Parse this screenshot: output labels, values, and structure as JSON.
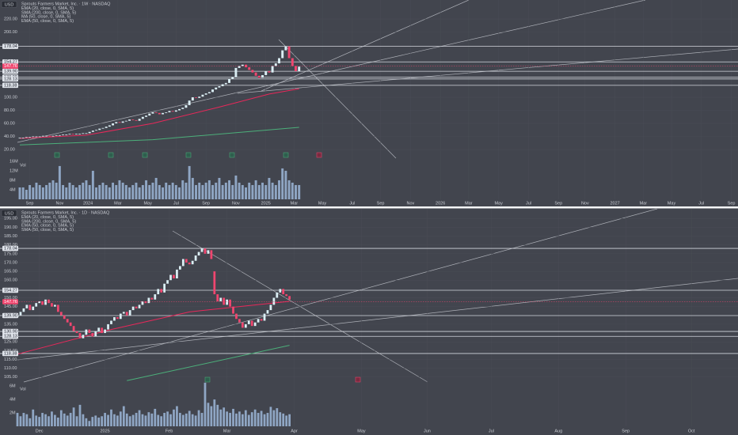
{
  "chart_data": [
    {
      "type": "candlestick",
      "currency": "USD",
      "title": "Sprouts Farmers Market, Inc. · 1W · NASDAQ",
      "indicators": [
        "EMA (20, close, 0, SMA, 5)",
        "SMA (200, close, 0, SMA, 5)",
        "MA (50, close, 0, SMA, 5)",
        "EMA (50, close, 0, SMA, 5)"
      ],
      "open": [
        37,
        38,
        38,
        39,
        39,
        40,
        40,
        40,
        41,
        41,
        40,
        41,
        42,
        42,
        43,
        43,
        44,
        43,
        44,
        44,
        45,
        45,
        47,
        49,
        50,
        52,
        53,
        55,
        57,
        60,
        62,
        61,
        63,
        64,
        66,
        65,
        64,
        67,
        70,
        72,
        75,
        77,
        76,
        74,
        76,
        77,
        79,
        78,
        80,
        82,
        84,
        88,
        95,
        100,
        99,
        101,
        104,
        106,
        108,
        112,
        115,
        117,
        120,
        122,
        128,
        131,
        145,
        148,
        150,
        146,
        142,
        138,
        133,
        130,
        134,
        140,
        138,
        148,
        152,
        160,
        172,
        178,
        160,
        148,
        140
      ],
      "close": [
        38,
        38,
        39,
        39,
        40,
        40,
        40,
        41,
        41,
        40,
        41,
        42,
        42,
        43,
        43,
        44,
        43,
        44,
        44,
        45,
        45,
        47,
        49,
        50,
        52,
        53,
        55,
        57,
        60,
        62,
        61,
        63,
        64,
        66,
        65,
        64,
        67,
        70,
        72,
        75,
        77,
        76,
        74,
        76,
        77,
        79,
        78,
        80,
        82,
        84,
        88,
        95,
        100,
        99,
        101,
        104,
        106,
        108,
        112,
        115,
        117,
        120,
        122,
        128,
        131,
        145,
        148,
        150,
        146,
        142,
        138,
        133,
        130,
        134,
        140,
        138,
        148,
        152,
        160,
        172,
        178,
        160,
        148,
        140,
        147
      ],
      "volume": [
        5,
        5,
        4,
        6,
        5,
        7,
        6,
        5,
        6,
        7,
        8,
        7,
        14,
        6,
        5,
        7,
        6,
        5,
        6,
        7,
        8,
        6,
        12,
        5,
        6,
        7,
        6,
        5,
        7,
        6,
        8,
        7,
        6,
        5,
        6,
        7,
        5,
        6,
        8,
        6,
        7,
        9,
        6,
        5,
        7,
        6,
        7,
        6,
        5,
        8,
        7,
        14,
        9,
        6,
        7,
        6,
        7,
        8,
        6,
        7,
        9,
        6,
        7,
        8,
        6,
        10,
        7,
        6,
        5,
        7,
        6,
        8,
        6,
        7,
        6,
        9,
        7,
        6,
        8,
        13,
        12,
        8,
        7,
        6,
        6
      ],
      "volume_label": "Vol",
      "up_color": "#dbeef4",
      "down_color": "#f0466f",
      "volume_color": "#8fa6c4",
      "ma": [
        {
          "color": "#e8285a",
          "x": [
            0,
            20,
            40,
            60,
            75,
            84
          ],
          "values": [
            37,
            42,
            60,
            85,
            105,
            113
          ]
        },
        {
          "color": "#4caf7a",
          "x": [
            0,
            40,
            84
          ],
          "values": [
            27,
            35,
            54
          ]
        }
      ],
      "ylim": [
        6.7,
        249.1
      ],
      "yticks": [
        {
          "value": 20,
          "label": "20.00"
        },
        {
          "value": 40,
          "label": "40.00"
        },
        {
          "value": 60,
          "label": "60.00"
        },
        {
          "value": 80,
          "label": "80.00"
        },
        {
          "value": 100,
          "label": "100.00"
        },
        {
          "value": 200,
          "label": "200.00"
        },
        {
          "value": 220,
          "label": "220.00"
        }
      ],
      "levels": [
        178.04,
        154.27,
        {
          "value": 139.9,
          "label": "139.90"
        },
        {
          "value": 130.9,
          "label": "130.90"
        },
        128.13,
        118.38
      ],
      "last_price": 147.76,
      "last_color": "#f0466f",
      "volume_lim": [
        0,
        17.3
      ],
      "volume_ticks": [
        {
          "value": 4,
          "label": "4M"
        },
        {
          "value": 8,
          "label": "8M"
        },
        {
          "value": 12,
          "label": "12M"
        },
        {
          "value": 16,
          "label": "16M"
        }
      ],
      "xlim": [
        -5.95,
        216
      ],
      "xticks": [
        {
          "value": 3,
          "label": "Sep"
        },
        {
          "value": 12,
          "label": "Nov"
        },
        {
          "value": 20.5,
          "label": "2024"
        },
        {
          "value": 29.5,
          "label": "Mar"
        },
        {
          "value": 38.5,
          "label": "May"
        },
        {
          "value": 47,
          "label": "Jul"
        },
        {
          "value": 56,
          "label": "Sep"
        },
        {
          "value": 65,
          "label": "Nov"
        },
        {
          "value": 74,
          "label": "2025"
        },
        {
          "value": 82.5,
          "label": "Mar"
        },
        {
          "value": 91,
          "label": "May"
        },
        {
          "value": 100,
          "label": "Jul"
        },
        {
          "value": 108.5,
          "label": "Sep"
        },
        {
          "value": 117.5,
          "label": "Nov"
        },
        {
          "value": 126.5,
          "label": "2026"
        },
        {
          "value": 135,
          "label": "Mar"
        },
        {
          "value": 144,
          "label": "May"
        },
        {
          "value": 153,
          "label": "Jul"
        },
        {
          "value": 162,
          "label": "Sep"
        },
        {
          "value": 170,
          "label": "Nov"
        },
        {
          "value": 179,
          "label": "2027"
        },
        {
          "value": 187.5,
          "label": "Mar"
        },
        {
          "value": 196,
          "label": "May"
        },
        {
          "value": 205,
          "label": "Jul"
        },
        {
          "value": 214,
          "label": "Sep"
        }
      ]
    },
    {
      "type": "candlestick",
      "currency": "USD",
      "title": "Sprouts Farmers Market, Inc. · 1D · NASDAQ",
      "indicators": [
        "EMA (20, close, 0, SMA, 5)",
        "SMA (200, close, 0, SMA, 5)",
        "EMA (50, close, 0, SMA, 5)",
        "SMA (50, close, 0, SMA, 5)"
      ],
      "open": [
        139,
        140,
        142,
        144,
        146,
        143,
        145,
        147,
        148,
        146,
        149,
        147,
        145,
        146,
        142,
        140,
        138,
        136,
        134,
        131,
        130,
        127,
        129,
        132,
        130,
        128,
        131,
        133,
        130,
        132,
        135,
        137,
        139,
        138,
        141,
        142,
        140,
        143,
        145,
        144,
        146,
        148,
        147,
        150,
        149,
        152,
        155,
        153,
        158,
        160,
        163,
        161,
        166,
        168,
        172,
        170,
        169,
        171,
        174,
        176,
        178,
        175,
        177,
        165,
        152,
        148,
        150,
        146,
        149,
        145,
        141,
        138,
        136,
        133,
        135,
        137,
        134,
        136,
        138,
        137,
        141,
        143,
        146,
        150,
        153,
        155,
        152,
        151
      ],
      "close": [
        140,
        142,
        144,
        146,
        143,
        145,
        147,
        148,
        146,
        149,
        147,
        145,
        146,
        142,
        140,
        138,
        136,
        134,
        131,
        130,
        127,
        129,
        132,
        130,
        128,
        131,
        133,
        130,
        132,
        135,
        137,
        139,
        138,
        141,
        142,
        140,
        143,
        145,
        144,
        146,
        148,
        147,
        150,
        149,
        152,
        155,
        153,
        158,
        160,
        163,
        161,
        166,
        168,
        172,
        170,
        169,
        171,
        174,
        176,
        178,
        175,
        177,
        172,
        152,
        148,
        150,
        146,
        149,
        145,
        141,
        138,
        136,
        133,
        135,
        137,
        134,
        136,
        138,
        137,
        141,
        143,
        146,
        150,
        153,
        155,
        152,
        151,
        149
      ],
      "volume": [
        2,
        1.5,
        2,
        1.8,
        1.2,
        2.5,
        1.6,
        1.4,
        2,
        1.8,
        1.5,
        2.2,
        1.7,
        1.3,
        2.4,
        1.9,
        1.6,
        2,
        2.8,
        1.5,
        3.2,
        1.8,
        1.2,
        0.8,
        1.4,
        1.6,
        1.3,
        1.5,
        2,
        1.7,
        2.5,
        1.8,
        1.6,
        2.2,
        3,
        1.9,
        1.5,
        1.7,
        2,
        2.4,
        1.8,
        1.6,
        2.1,
        1.9,
        2.6,
        1.7,
        1.5,
        2,
        2.2,
        1.8,
        2.5,
        3,
        2,
        1.7,
        1.9,
        2.3,
        1.8,
        1.6,
        2.4,
        2,
        6.5,
        3.5,
        3,
        4,
        3.2,
        2.5,
        2.8,
        2.2,
        2,
        2.6,
        1.9,
        2.2,
        1.8,
        2.4,
        1.7,
        2.1,
        2.5,
        2,
        2.3,
        1.8,
        2,
        2.9,
        2.4,
        2.7,
        2.1,
        1.9,
        1.6,
        1.8
      ],
      "volume_label": "Vol",
      "up_color": "#dbeef4",
      "down_color": "#f0466f",
      "volume_color": "#8fa6c4",
      "ma": [
        {
          "color": "#e8285a",
          "x": [
            0,
            30,
            55,
            87
          ],
          "values": [
            118,
            132,
            142,
            148
          ]
        },
        {
          "color": "#4caf7a",
          "x": [
            35,
            87
          ],
          "values": [
            103,
            123
          ]
        }
      ],
      "ylim": [
        102.2,
        200.5
      ],
      "yticks": [
        {
          "value": 105,
          "label": "105.00"
        },
        {
          "value": 110,
          "label": "110.00"
        },
        {
          "value": 115,
          "label": "115.00"
        },
        {
          "value": 120,
          "label": "120.00"
        },
        {
          "value": 125,
          "label": "125.00"
        },
        {
          "value": 135,
          "label": "135.00"
        },
        {
          "value": 145,
          "label": "145.00"
        },
        {
          "value": 150,
          "label": "150.00"
        },
        {
          "value": 160,
          "label": "160.00"
        },
        {
          "value": 165,
          "label": "165.00"
        },
        {
          "value": 170,
          "label": "170.00"
        },
        {
          "value": 175,
          "label": "175.00"
        },
        {
          "value": 180,
          "label": "180.00"
        },
        {
          "value": 185,
          "label": "185.00"
        },
        {
          "value": 190,
          "label": "190.00"
        },
        {
          "value": 195,
          "label": "195.00"
        }
      ],
      "levels": [
        178.04,
        154.27,
        {
          "value": 139.9,
          "label": "139.90"
        },
        {
          "value": 130.9,
          "label": "130.90"
        },
        128.13,
        118.38
      ],
      "last_price": 147.76,
      "last_color": "#f0466f",
      "volume_lim": [
        0,
        6.6
      ],
      "volume_ticks": [
        {
          "value": 2,
          "label": "2M"
        },
        {
          "value": 4,
          "label": "4M"
        },
        {
          "value": 6,
          "label": "6M"
        }
      ],
      "xlim": [
        -5.57,
        230.4
      ],
      "xticks": [
        {
          "value": 7,
          "label": "Dec"
        },
        {
          "value": 28,
          "label": "2025"
        },
        {
          "value": 48.5,
          "label": "Feb"
        },
        {
          "value": 67,
          "label": "Mar"
        },
        {
          "value": 88.5,
          "label": "Apr"
        },
        {
          "value": 110,
          "label": "May"
        },
        {
          "value": 131,
          "label": "Jun"
        },
        {
          "value": 151.5,
          "label": "Jul"
        },
        {
          "value": 173,
          "label": "Aug"
        },
        {
          "value": 194.5,
          "label": "Sep"
        },
        {
          "value": 215.5,
          "label": "Oct"
        }
      ]
    }
  ]
}
